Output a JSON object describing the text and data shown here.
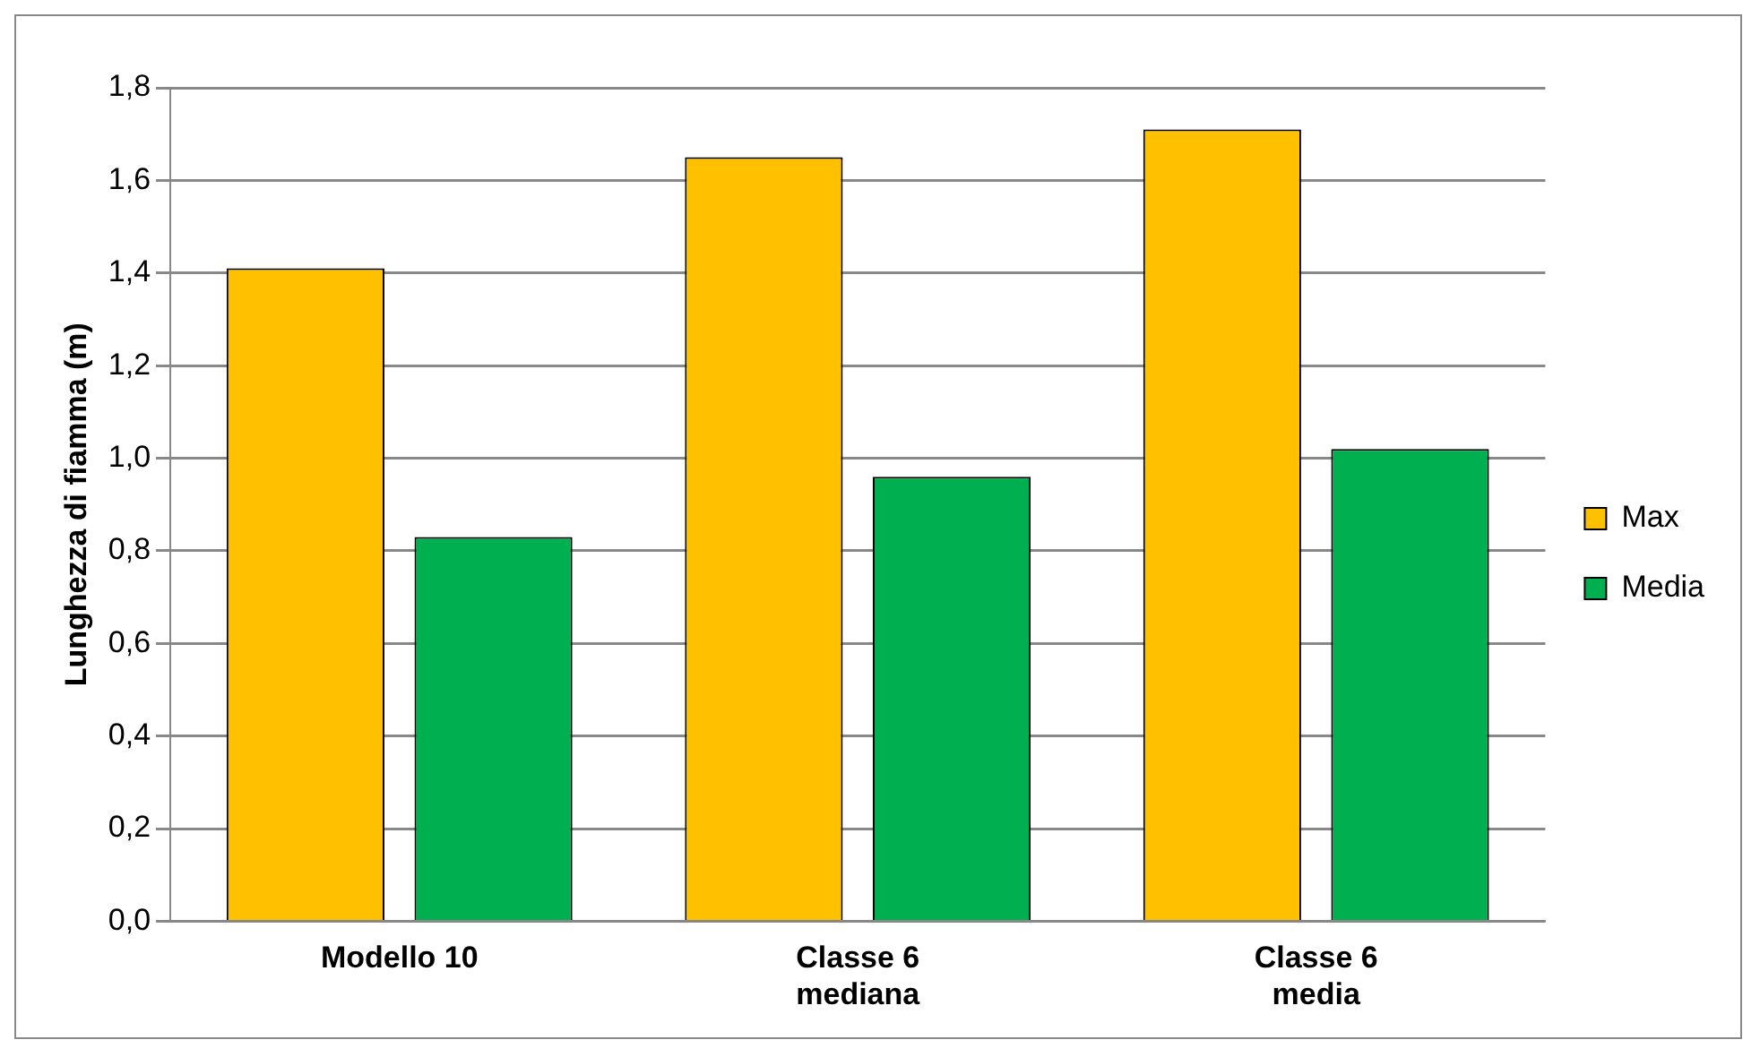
{
  "chart_data": {
    "type": "bar",
    "ylabel": "Lunghezza di fiamma (m)",
    "categories": [
      "Modello 10",
      "Classe 6 mediana",
      "Classe 6 media"
    ],
    "series": [
      {
        "name": "Max",
        "color": "#ffc000",
        "values": [
          1.41,
          1.65,
          1.71
        ]
      },
      {
        "name": "Media",
        "color": "#00b050",
        "values": [
          0.83,
          0.96,
          1.02
        ]
      }
    ],
    "ylim": [
      0,
      1.8
    ],
    "yticks": [
      {
        "value": 0,
        "label": "0,0"
      },
      {
        "value": 0.2,
        "label": "0,2"
      },
      {
        "value": 0.4,
        "label": "0,4"
      },
      {
        "value": 0.6,
        "label": "0,6"
      },
      {
        "value": 0.8,
        "label": "0,8"
      },
      {
        "value": 1,
        "label": "1,0"
      },
      {
        "value": 1.2,
        "label": "1,2"
      },
      {
        "value": 1.4,
        "label": "1,4"
      },
      {
        "value": 1.6,
        "label": "1,6"
      },
      {
        "value": 1.8,
        "label": "1,8"
      }
    ],
    "grid": "y",
    "legend": "right"
  }
}
